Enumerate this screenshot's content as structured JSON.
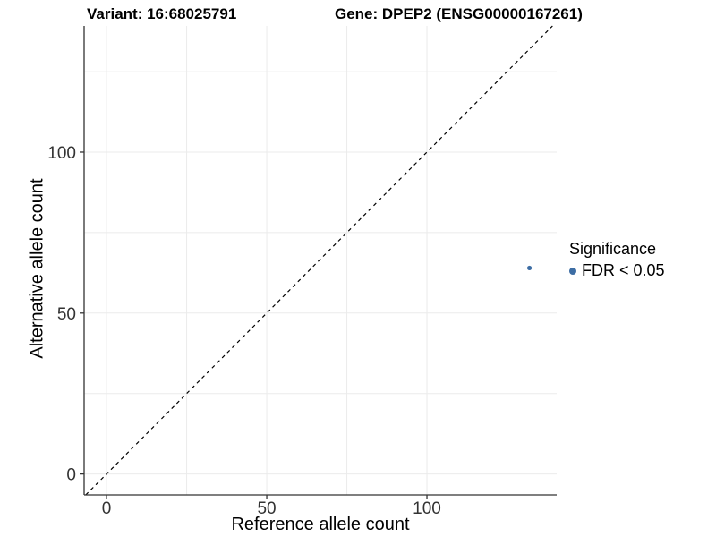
{
  "chart_data": {
    "type": "scatter",
    "title_left": "Variant: 16:68025791",
    "title_right": "Gene: DPEP2 (ENSG00000167261)",
    "xlabel": "Reference allele count",
    "ylabel": "Alternative allele count",
    "xlim": [
      -7,
      140.5
    ],
    "ylim": [
      -6.5,
      139.2
    ],
    "xticks": [
      0,
      50,
      100
    ],
    "yticks": [
      0,
      50,
      100
    ],
    "grid": true,
    "grid_step": 25,
    "identity_line": {
      "equation": "y = x",
      "style": "dashed"
    },
    "series": [
      {
        "name": "FDR < 0.05",
        "color": "#3D6DA4",
        "points": [
          [
            132,
            64
          ]
        ]
      }
    ],
    "legend": {
      "title": "Significance",
      "position": "right",
      "entries": [
        {
          "label": "FDR < 0.05",
          "color": "#3D6DA4"
        }
      ]
    }
  },
  "colors": {
    "background": "#ffffff",
    "axis_line": "#333333",
    "tick_text": "#333333",
    "grid_line": "#ebebeb",
    "identity_line": "#000000",
    "point": "#3D6DA4"
  }
}
